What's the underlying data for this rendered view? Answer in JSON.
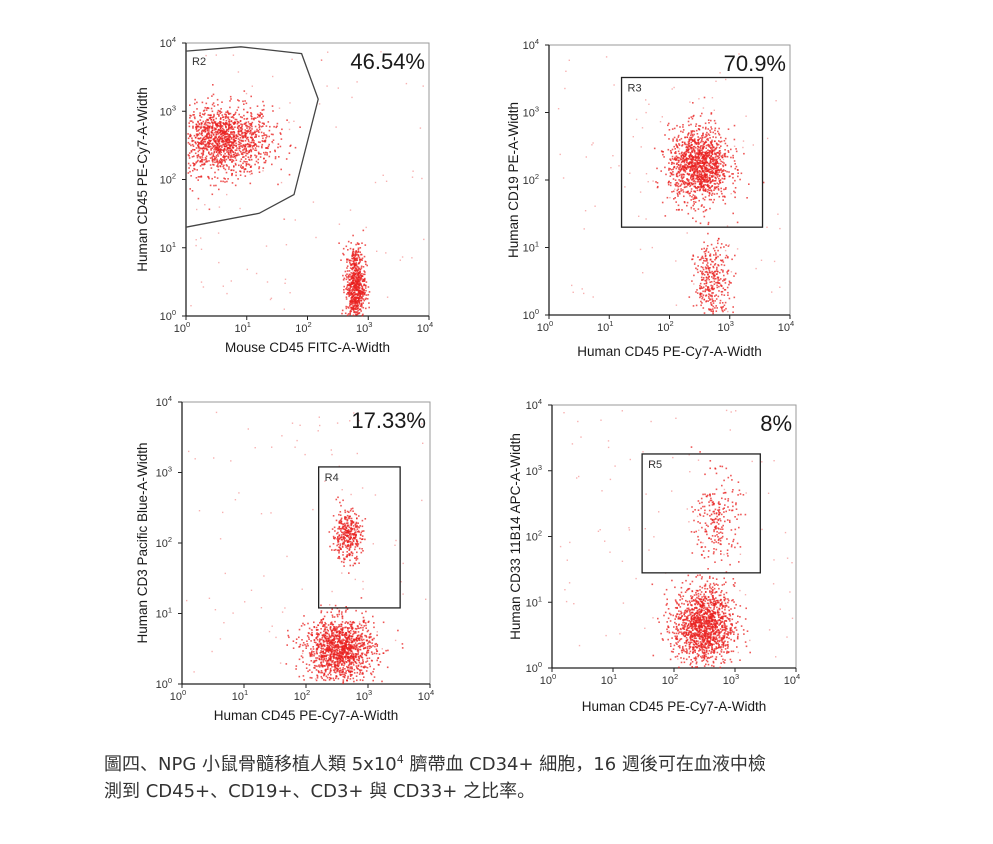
{
  "chart_data": [
    {
      "type": "scatter",
      "xlabel": "Mouse CD45 FITC-A-Width",
      "ylabel": "Human CD45 PE-Cy7-A-Width",
      "xscale": "log",
      "yscale": "log",
      "xlim": [
        1,
        10000
      ],
      "ylim": [
        1,
        10000
      ],
      "x_ticks": [
        "10|0",
        "10|1",
        "10|2",
        "10|3",
        "10|4"
      ],
      "y_ticks": [
        "10|0",
        "10|1",
        "10|2",
        "10|3",
        "10|4"
      ],
      "gate": {
        "name": "R2",
        "shape": "polygon",
        "vertices": [
          [
            1,
            7600
          ],
          [
            8,
            8800
          ],
          [
            80,
            7000
          ],
          [
            150,
            1500
          ],
          [
            60,
            60
          ],
          [
            16,
            32
          ],
          [
            1,
            20
          ]
        ]
      },
      "percent": "46.54%",
      "point_color": "#e8201f",
      "clusters": [
        {
          "x_center": 4,
          "y_center": 380,
          "x_spread_decades": 0.4,
          "y_spread_decades": 0.25,
          "count": 1400
        },
        {
          "x_center": 600,
          "y_center": 2.8,
          "x_spread_decades": 0.08,
          "y_spread_decades": 0.3,
          "count": 700
        }
      ]
    },
    {
      "type": "scatter",
      "xlabel": "Human CD45 PE-Cy7-A-Width",
      "ylabel": "Human CD19 PE-A-Width",
      "xscale": "log",
      "yscale": "log",
      "xlim": [
        1,
        10000
      ],
      "ylim": [
        1,
        10000
      ],
      "x_ticks": [
        "10|0",
        "10|1",
        "10|2",
        "10|3",
        "10|4"
      ],
      "y_ticks": [
        "10|0",
        "10|1",
        "10|2",
        "10|3",
        "10|4"
      ],
      "gate": {
        "name": "R3",
        "shape": "rect",
        "x_range": [
          16,
          3500
        ],
        "y_range": [
          20,
          3300
        ]
      },
      "percent": "70.9%",
      "point_color": "#e8201f",
      "clusters": [
        {
          "x_center": 300,
          "y_center": 170,
          "x_spread_decades": 0.25,
          "y_spread_decades": 0.28,
          "count": 1300
        },
        {
          "x_center": 500,
          "y_center": 3,
          "x_spread_decades": 0.15,
          "y_spread_decades": 0.3,
          "count": 350
        }
      ]
    },
    {
      "type": "scatter",
      "xlabel": "Human CD45 PE-Cy7-A-Width",
      "ylabel": "Human CD3 Pacific Blue-A-Width",
      "xscale": "log",
      "yscale": "log",
      "xlim": [
        1,
        10000
      ],
      "ylim": [
        1,
        10000
      ],
      "x_ticks": [
        "10|0",
        "10|1",
        "10|2",
        "10|3",
        "10|4"
      ],
      "y_ticks": [
        "10|0",
        "10|1",
        "10|2",
        "10|3",
        "10|4"
      ],
      "gate": {
        "name": "R4",
        "shape": "rect",
        "x_range": [
          160,
          3300
        ],
        "y_range": [
          12,
          1200
        ]
      },
      "percent": "17.33%",
      "point_color": "#e8201f",
      "clusters": [
        {
          "x_center": 450,
          "y_center": 130,
          "x_spread_decades": 0.12,
          "y_spread_decades": 0.18,
          "count": 350
        },
        {
          "x_center": 350,
          "y_center": 3.2,
          "x_spread_decades": 0.28,
          "y_spread_decades": 0.22,
          "count": 1300
        }
      ]
    },
    {
      "type": "scatter",
      "xlabel": "Human CD45 PE-Cy7-A-Width",
      "ylabel": "Human CD33 11B14 APC-A-Width",
      "xscale": "log",
      "yscale": "log",
      "xlim": [
        1,
        10000
      ],
      "ylim": [
        1,
        10000
      ],
      "x_ticks": [
        "10|0",
        "10|1",
        "10|2",
        "10|3",
        "10|4"
      ],
      "y_ticks": [
        "10|0",
        "10|1",
        "10|2",
        "10|3",
        "10|4"
      ],
      "gate": {
        "name": "R5",
        "shape": "rect",
        "x_range": [
          30,
          2600
        ],
        "y_range": [
          28,
          1800
        ]
      },
      "percent": "8%",
      "point_color": "#e8201f",
      "clusters": [
        {
          "x_center": 500,
          "y_center": 180,
          "x_spread_decades": 0.18,
          "y_spread_decades": 0.35,
          "count": 230
        },
        {
          "x_center": 300,
          "y_center": 4.5,
          "x_spread_decades": 0.25,
          "y_spread_decades": 0.3,
          "count": 1400
        }
      ]
    }
  ],
  "caption": {
    "line1_before_sup": "圖四、NPG 小鼠骨髓移植人類 5x10",
    "line1_sup": "4",
    "line1_after_sup": " 臍帶血 CD34+ 細胞，16 週後可在血液中檢",
    "line2": "測到 CD45+、CD19+、CD3+ 與 CD33+ 之比率。"
  }
}
